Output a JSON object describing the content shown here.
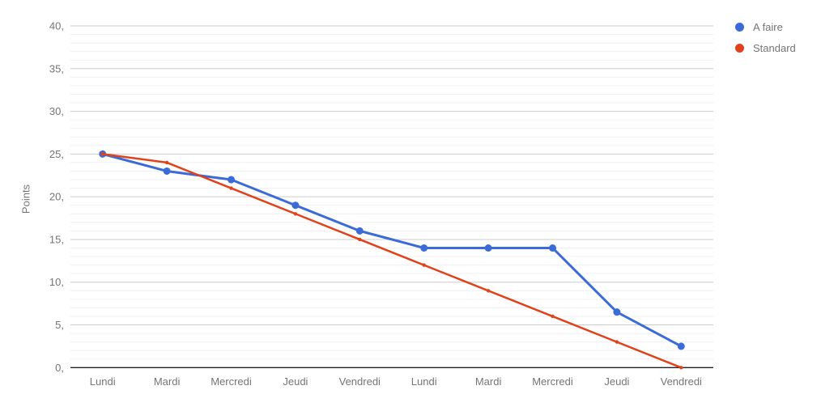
{
  "chart_data": {
    "type": "line",
    "categories": [
      "Lundi",
      "Mardi",
      "Mercredi",
      "Jeudi",
      "Vendredi",
      "Lundi",
      "Mardi",
      "Mercredi",
      "Jeudi",
      "Vendredi"
    ],
    "series": [
      {
        "name": "A faire",
        "color": "#3b6bd6",
        "values": [
          25,
          23,
          22,
          19,
          16,
          14,
          14,
          14,
          6.5,
          2.5
        ],
        "line_width": 3,
        "point_radius": 4.5
      },
      {
        "name": "Standard",
        "color": "#e0431c",
        "values": [
          25,
          24,
          21,
          18,
          15,
          12,
          9,
          6,
          3,
          0
        ],
        "line_width": 2.5,
        "point_radius": 2.2
      }
    ],
    "title": "",
    "xlabel": "",
    "ylabel": "Points",
    "ylim": [
      0,
      40
    ],
    "y_major_step": 5,
    "y_minor_step": 1,
    "y_tick_labels": [
      "0,",
      "5,",
      "10,",
      "15,",
      "20,",
      "25,",
      "30,",
      "35,",
      "40,"
    ],
    "grid": true,
    "legend_position": "top-right",
    "colors": {
      "major_gridline": "#cccccc",
      "minor_gridline": "#efefef",
      "axis_line": "#212121",
      "tick_text": "#757575",
      "background": "#ffffff"
    }
  }
}
